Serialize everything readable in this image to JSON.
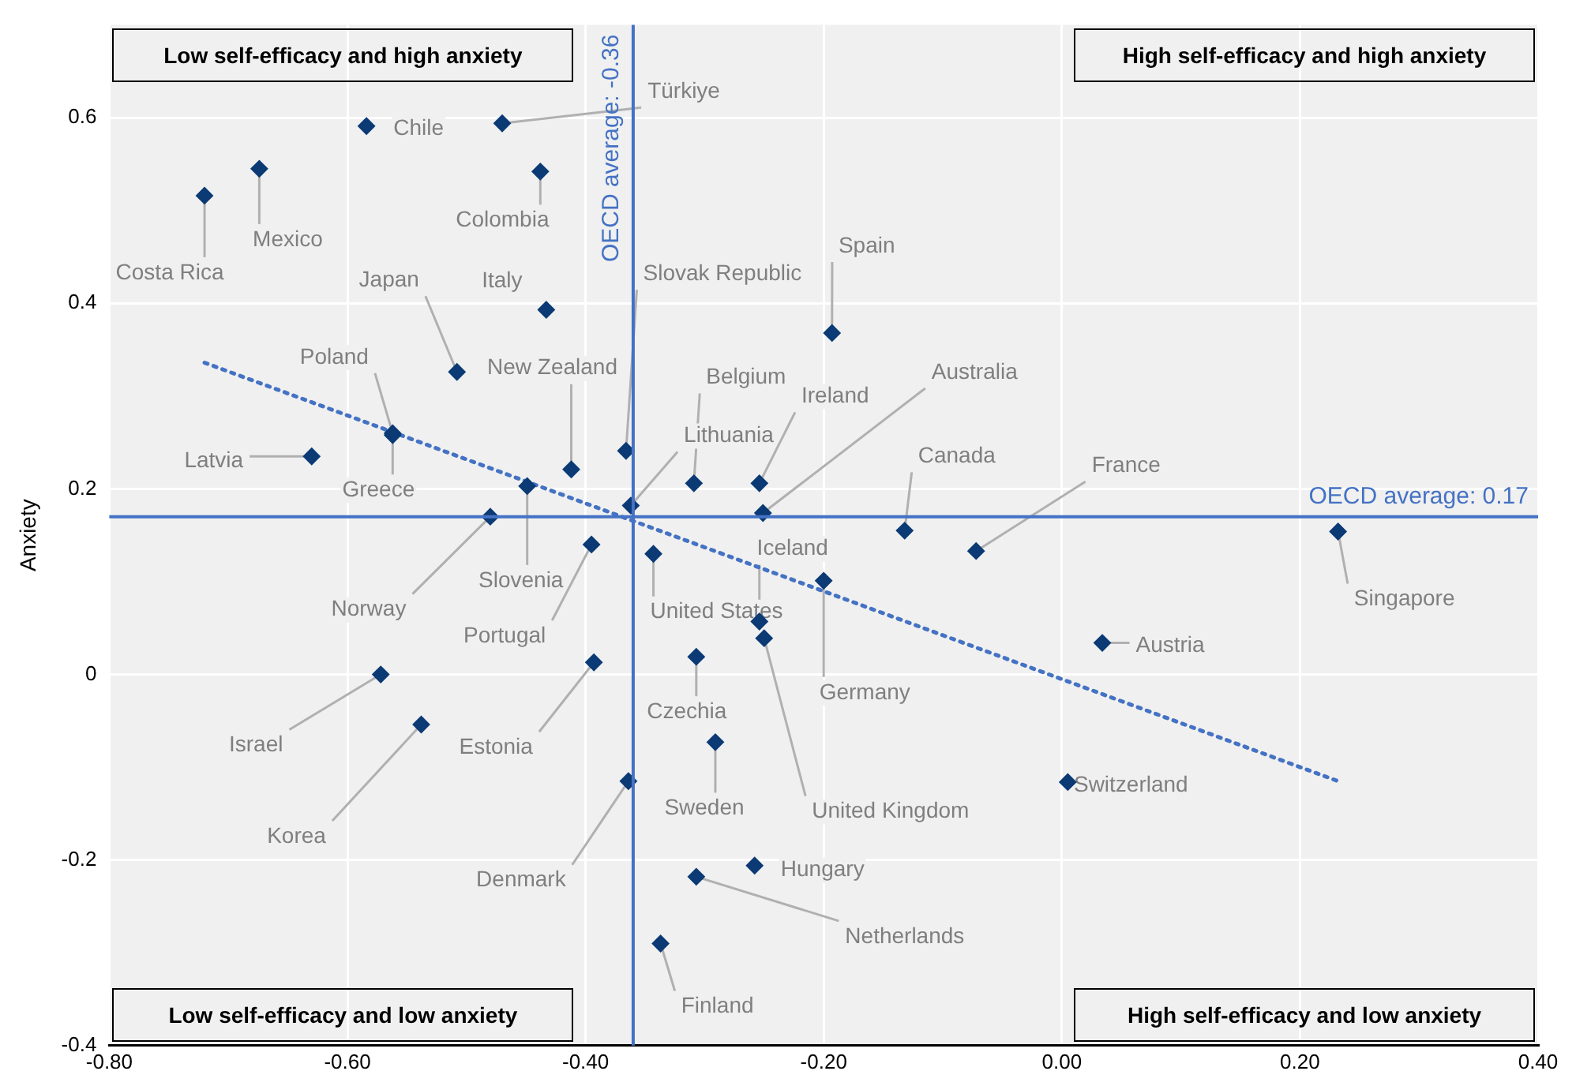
{
  "chart_data": {
    "type": "scatter",
    "ylabel": "Anxiety",
    "xlim": [
      -0.8,
      0.4
    ],
    "ylim": [
      -0.4,
      0.7
    ],
    "xticks": [
      {
        "value": -0.8,
        "label": "-0.80"
      },
      {
        "value": -0.6,
        "label": "-0.60"
      },
      {
        "value": -0.4,
        "label": "-0.40"
      },
      {
        "value": -0.2,
        "label": "-0.20"
      },
      {
        "value": 0,
        "label": "0.00"
      },
      {
        "value": 0.2,
        "label": "0.20"
      },
      {
        "value": 0.4,
        "label": "0.40"
      }
    ],
    "yticks": [
      -0.4,
      -0.2,
      0,
      0.2,
      0.4,
      0.6
    ],
    "grid": true,
    "legend": false,
    "marker": "diamond",
    "annotations": [
      "Low self-efficacy and high anxiety",
      "High self-efficacy and high anxiety",
      "Low self-efficacy and low anxiety",
      "High self-efficacy and low anxiety"
    ],
    "ref_lines": [
      {
        "axis": "x",
        "value": -0.36,
        "label": "OECD average: -0.36",
        "color": "#4472c4"
      },
      {
        "axis": "y",
        "value": 0.17,
        "label": "OECD average: 0.17",
        "color": "#4472c4"
      }
    ],
    "series": [
      {
        "name": "Chile",
        "color": "#0b3a75",
        "x": [
          -0.584
        ],
        "values": [
          0.591
        ]
      },
      {
        "name": "Türkiye",
        "color": "#0b3a75",
        "x": [
          -0.47
        ],
        "values": [
          0.594
        ]
      },
      {
        "name": "Mexico",
        "color": "#0b3a75",
        "x": [
          -0.674
        ],
        "values": [
          0.545
        ]
      },
      {
        "name": "Colombia",
        "color": "#0b3a75",
        "x": [
          -0.438
        ],
        "values": [
          0.542
        ]
      },
      {
        "name": "Costa Rica",
        "color": "#0b3a75",
        "x": [
          -0.72
        ],
        "values": [
          0.516
        ]
      },
      {
        "name": "Italy",
        "color": "#0b3a75",
        "x": [
          -0.433
        ],
        "values": [
          0.393
        ]
      },
      {
        "name": "Japan",
        "color": "#0b3a75",
        "x": [
          -0.508
        ],
        "values": [
          0.326
        ]
      },
      {
        "name": "Spain",
        "color": "#0b3a75",
        "x": [
          -0.193
        ],
        "values": [
          0.368
        ]
      },
      {
        "name": "Poland",
        "color": "#0b3a75",
        "x": [
          -0.562
        ],
        "values": [
          0.26
        ]
      },
      {
        "name": "Greece",
        "color": "#0b3a75",
        "x": [
          -0.562
        ],
        "values": [
          0.258
        ]
      },
      {
        "name": "Latvia",
        "color": "#0b3a75",
        "x": [
          -0.63
        ],
        "values": [
          0.235
        ]
      },
      {
        "name": "New Zealand",
        "color": "#0b3a75",
        "x": [
          -0.412
        ],
        "values": [
          0.221
        ]
      },
      {
        "name": "Slovak Republic",
        "color": "#0b3a75",
        "x": [
          -0.366
        ],
        "values": [
          0.241
        ]
      },
      {
        "name": "Belgium",
        "color": "#0b3a75",
        "x": [
          -0.309
        ],
        "values": [
          0.206
        ]
      },
      {
        "name": "Ireland",
        "color": "#0b3a75",
        "x": [
          -0.254
        ],
        "values": [
          0.206
        ]
      },
      {
        "name": "Australia",
        "color": "#0b3a75",
        "x": [
          -0.251
        ],
        "values": [
          0.174
        ]
      },
      {
        "name": "Lithuania",
        "color": "#0b3a75",
        "x": [
          -0.362
        ],
        "values": [
          0.182
        ]
      },
      {
        "name": "Slovenia",
        "color": "#0b3a75",
        "x": [
          -0.449
        ],
        "values": [
          0.203
        ]
      },
      {
        "name": "Norway",
        "color": "#0b3a75",
        "x": [
          -0.48
        ],
        "values": [
          0.17
        ]
      },
      {
        "name": "Canada",
        "color": "#0b3a75",
        "x": [
          -0.132
        ],
        "values": [
          0.155
        ]
      },
      {
        "name": "France",
        "color": "#0b3a75",
        "x": [
          -0.072
        ],
        "values": [
          0.133
        ]
      },
      {
        "name": "Singapore",
        "color": "#0b3a75",
        "x": [
          0.232
        ],
        "values": [
          0.154
        ]
      },
      {
        "name": "Portugal",
        "color": "#0b3a75",
        "x": [
          -0.395
        ],
        "values": [
          0.14
        ]
      },
      {
        "name": "United States",
        "color": "#0b3a75",
        "x": [
          -0.343
        ],
        "values": [
          0.13
        ]
      },
      {
        "name": "Germany",
        "color": "#0b3a75",
        "x": [
          -0.2
        ],
        "values": [
          0.101
        ]
      },
      {
        "name": "Iceland",
        "color": "#0b3a75",
        "x": [
          -0.254
        ],
        "values": [
          0.057
        ]
      },
      {
        "name": "United Kingdom",
        "color": "#0b3a75",
        "x": [
          -0.25
        ],
        "values": [
          0.039
        ]
      },
      {
        "name": "Austria",
        "color": "#0b3a75",
        "x": [
          0.034
        ],
        "values": [
          0.034
        ]
      },
      {
        "name": "Estonia",
        "color": "#0b3a75",
        "x": [
          -0.393
        ],
        "values": [
          0.013
        ]
      },
      {
        "name": "Czechia",
        "color": "#0b3a75",
        "x": [
          -0.307
        ],
        "values": [
          0.019
        ]
      },
      {
        "name": "Israel",
        "color": "#0b3a75",
        "x": [
          -0.572
        ],
        "values": [
          0
        ]
      },
      {
        "name": "Korea",
        "color": "#0b3a75",
        "x": [
          -0.538
        ],
        "values": [
          -0.054
        ]
      },
      {
        "name": "Sweden",
        "color": "#0b3a75",
        "x": [
          -0.291
        ],
        "values": [
          -0.073
        ]
      },
      {
        "name": "Switzerland",
        "color": "#0b3a75",
        "x": [
          0.005
        ],
        "values": [
          -0.116
        ]
      },
      {
        "name": "Denmark",
        "color": "#0b3a75",
        "x": [
          -0.364
        ],
        "values": [
          -0.115
        ]
      },
      {
        "name": "Hungary",
        "color": "#0b3a75",
        "x": [
          -0.258
        ],
        "values": [
          -0.206
        ]
      },
      {
        "name": "Netherlands",
        "color": "#0b3a75",
        "x": [
          -0.307
        ],
        "values": [
          -0.218
        ]
      },
      {
        "name": "Finland",
        "color": "#0b3a75",
        "x": [
          -0.337
        ],
        "values": [
          -0.29
        ]
      },
      {
        "type": "line",
        "color": "#4472c4",
        "x": [
          -0.72,
          0.232
        ],
        "values": [
          0.336,
          -0.115
        ],
        "line_style": "dotted",
        "marker": "none"
      }
    ]
  }
}
